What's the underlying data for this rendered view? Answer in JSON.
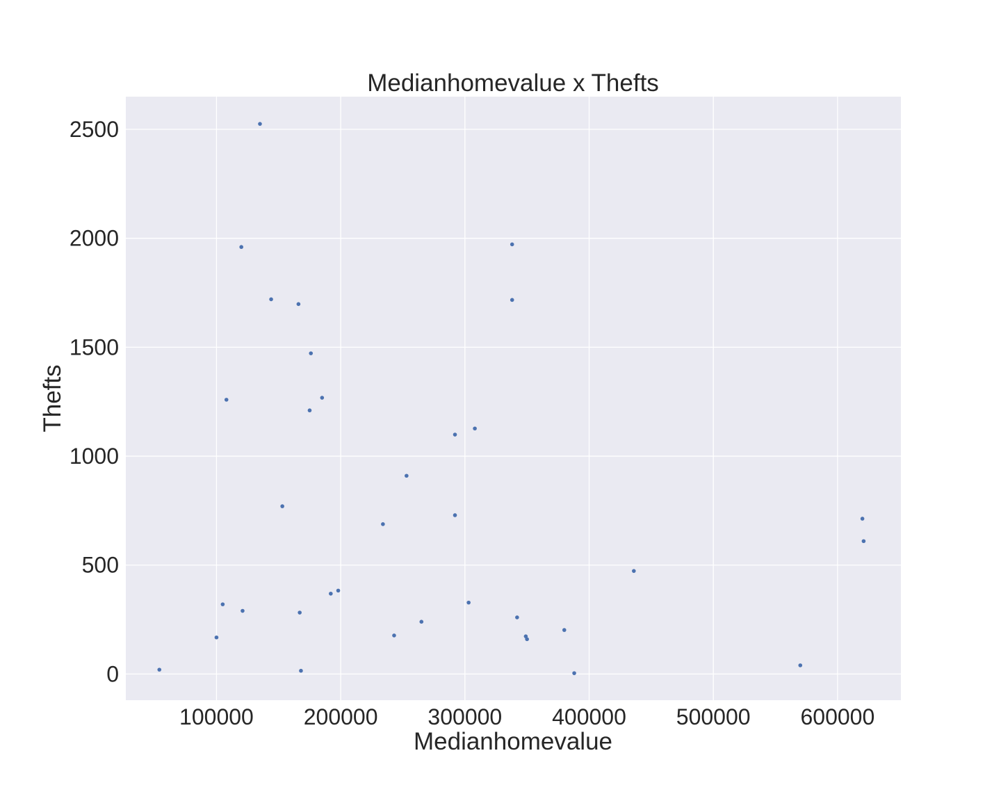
{
  "chart_data": {
    "type": "scatter",
    "title": "Medianhomevalue x Thefts",
    "xlabel": "Medianhomevalue",
    "ylabel": "Thefts",
    "xlim": [
      27000,
      651000
    ],
    "ylim": [
      -120,
      2650
    ],
    "xticks": [
      100000,
      200000,
      300000,
      400000,
      500000,
      600000
    ],
    "xtick_labels": [
      "100000",
      "200000",
      "300000",
      "400000",
      "500000",
      "600000"
    ],
    "yticks": [
      0,
      500,
      1000,
      1500,
      2000,
      2500
    ],
    "ytick_labels": [
      "0",
      "500",
      "1000",
      "1500",
      "2000",
      "2500"
    ],
    "grid": true,
    "background": "#eaeaf2",
    "point_color": "#4c72b0",
    "series": [
      {
        "x": [
          135000,
          120000,
          338000,
          144000,
          166000,
          338000,
          176000,
          108000,
          185000,
          175000,
          308000,
          292000,
          253000,
          153000,
          292000,
          234000,
          620000,
          621000,
          436000,
          198000,
          192000,
          105000,
          303000,
          121000,
          167000,
          342000,
          265000,
          380000,
          243000,
          349000,
          350000,
          100000,
          570000,
          54000,
          168000,
          388000
        ],
        "y": [
          2525,
          1960,
          1972,
          1720,
          1698,
          1717,
          1472,
          1259,
          1268,
          1210,
          1127,
          1099,
          910,
          770,
          729,
          688,
          713,
          610,
          473,
          383,
          369,
          320,
          328,
          290,
          282,
          260,
          240,
          202,
          177,
          173,
          160,
          168,
          40,
          20,
          15,
          4
        ]
      }
    ]
  }
}
